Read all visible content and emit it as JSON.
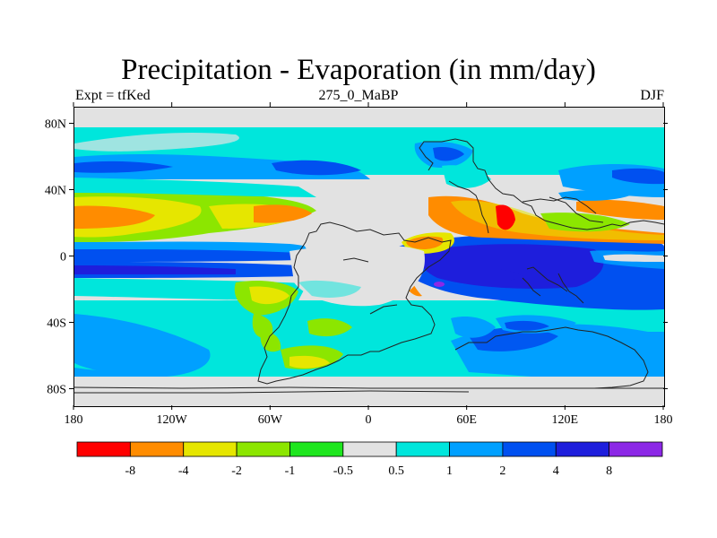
{
  "title": "Precipitation - Evaporation (in mm/day)",
  "subtitle_left": "Expt = tfKed",
  "subtitle_center": "275_0_MaBP",
  "subtitle_right": "DJF",
  "lat_ticks": [
    {
      "lat": 80,
      "label": "80N"
    },
    {
      "lat": 40,
      "label": "40N"
    },
    {
      "lat": 0,
      "label": "0"
    },
    {
      "lat": -40,
      "label": "40S"
    },
    {
      "lat": -80,
      "label": "80S"
    }
  ],
  "lon_ticks": [
    {
      "lon": -180,
      "label": "180"
    },
    {
      "lon": -120,
      "label": "120W"
    },
    {
      "lon": -60,
      "label": "60W"
    },
    {
      "lon": 0,
      "label": "0"
    },
    {
      "lon": 60,
      "label": "60E"
    },
    {
      "lon": 120,
      "label": "120E"
    },
    {
      "lon": 180,
      "label": "180"
    }
  ],
  "colorbar": {
    "colors": [
      "#ff0000",
      "#ff8c00",
      "#e6e600",
      "#8ce600",
      "#1ee61e",
      "#e2e2e2",
      "#00e6dc",
      "#00a0ff",
      "#0050f0",
      "#1e1edc",
      "#8c28e6"
    ],
    "labels": [
      "-8",
      "-4",
      "-2",
      "-1",
      "-0.5",
      "0.5",
      "1",
      "2",
      "4",
      "8"
    ]
  },
  "palette": {
    "gray": "#e2e2e2",
    "cyan": "#00e6dc",
    "lightblue": "#00a0ff",
    "blue": "#0050f0",
    "darkblue": "#1e1edc",
    "purple": "#8c28e6",
    "green": "#1ee61e",
    "lightgreen": "#8ce600",
    "yellow": "#e6e600",
    "orange": "#ff8c00",
    "red": "#ff0000"
  }
}
